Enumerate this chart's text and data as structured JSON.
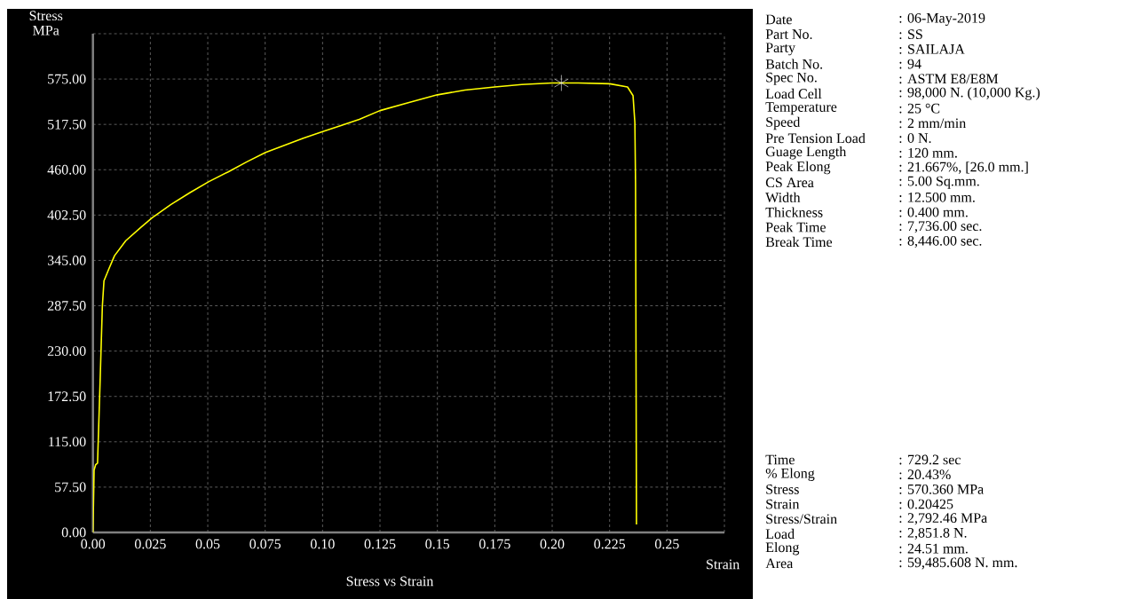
{
  "chart_data": {
    "type": "line",
    "title": "Stress vs Strain",
    "xlabel": "Strain",
    "ylabel": "Stress MPa",
    "xlim": [
      0,
      0.275
    ],
    "ylim": [
      0,
      632.5
    ],
    "xticks": [
      {
        "value": 0,
        "label": "0.00"
      },
      0.025,
      0.05,
      0.075,
      {
        "value": 0.1,
        "label": "0.10"
      },
      0.125,
      0.15,
      0.175,
      {
        "value": 0.2,
        "label": "0.20"
      },
      0.225,
      0.25,
      {
        "value": 0.275,
        "label": null
      }
    ],
    "yticks": [
      {
        "value": 0,
        "label": "0.00"
      },
      {
        "value": 57.5,
        "label": "57.50"
      },
      {
        "value": 115,
        "label": "115.00"
      },
      {
        "value": 172.5,
        "label": "172.50"
      },
      {
        "value": 230,
        "label": "230.00"
      },
      {
        "value": 287.5,
        "label": "287.50"
      },
      {
        "value": 345,
        "label": "345.00"
      },
      {
        "value": 402.5,
        "label": "402.50"
      },
      {
        "value": 460,
        "label": "460.00"
      },
      {
        "value": 517.5,
        "label": "517.50"
      },
      {
        "value": 575,
        "label": "575.00"
      },
      {
        "value": 632.5,
        "label": null
      }
    ],
    "grid": true,
    "series": [
      {
        "color": "#ffff00",
        "marker": "none",
        "line_style": "solid",
        "x": [
          0,
          0.0005,
          0.0012,
          0.002,
          0.0031,
          0.0041,
          0.0048,
          0.0069,
          0.0094,
          0.0143,
          0.0209,
          0.0258,
          0.034,
          0.0423,
          0.0505,
          0.0587,
          0.067,
          0.0752,
          0.0834,
          0.0916,
          0.0998,
          0.108,
          0.116,
          0.125,
          0.1373,
          0.15,
          0.162,
          0.175,
          0.1867,
          0.2,
          0.2113,
          0.225,
          0.2328,
          0.2352,
          0.236,
          0.2363,
          0.2367
        ],
        "values": [
          0,
          79,
          86,
          88,
          190,
          287,
          319,
          334,
          351,
          370,
          387,
          399,
          416,
          431,
          445,
          457,
          470,
          482,
          491,
          500,
          508,
          516,
          524,
          535,
          545,
          555,
          561,
          565,
          568,
          570,
          570,
          569,
          565,
          554,
          520,
          442,
          10
        ]
      },
      {
        "type": "scatter",
        "color": "#ffffff",
        "marker": "cross",
        "x": [
          0.204
        ],
        "values": [
          570
        ]
      }
    ],
    "annotations": [
      "Date",
      ": 06-May-2019",
      "Part No.",
      ": SS",
      "Party",
      ": SAILAJA",
      "Batch No.",
      ": 94",
      "Spec No.",
      ": ASTM E8/E8M",
      "Load Cell",
      ": 98,000 N. (10,000 Kg.)",
      "Temperature",
      ": 25 °C",
      "Speed",
      ": 2 mm/min",
      "Pre Tension Load",
      ": 0 N.",
      "Guage Length",
      ": 120 mm.",
      "Peak Elong",
      ": 21.667%, [26.0 mm.]",
      "CS Area",
      ": 5.00 Sq.mm.",
      "Width",
      ": 12.500 mm.",
      "Thickness",
      ": 0.400 mm.",
      "Peak Time",
      ": 7,736.00 sec.",
      "Break Time",
      ": 8,446.00 sec.",
      "Time",
      ": 729.2 sec",
      "% Elong",
      ": 20.43%",
      "Stress",
      ": 570.360 MPa",
      "Strain",
      ": 0.20425",
      "Stress/Strain",
      ": 2,792.46 MPa",
      "Load",
      ": 2,851.8 N.",
      "Elong",
      ": 24.51 mm.",
      "Area",
      ": 59,485.608 N. mm."
    ]
  }
}
